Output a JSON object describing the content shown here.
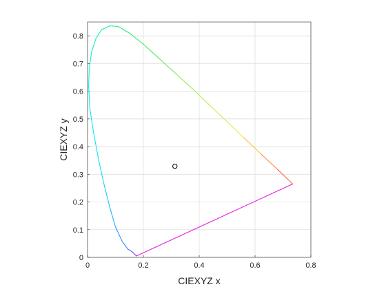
{
  "chart_data": {
    "type": "line",
    "title": "",
    "xlabel": "CIEXYZ x",
    "ylabel": "CIEXYZ y",
    "xlim": [
      0,
      0.8
    ],
    "ylim": [
      0,
      0.85
    ],
    "xticks": [
      0,
      0.2,
      0.4,
      0.6,
      0.8
    ],
    "xtick_labels": [
      "0",
      "0.2",
      "0.4",
      "0.6",
      "0.8"
    ],
    "yticks": [
      0,
      0.1,
      0.2,
      0.3,
      0.4,
      0.5,
      0.6,
      0.7,
      0.8
    ],
    "ytick_labels": [
      "0",
      "0.1",
      "0.2",
      "0.3",
      "0.4",
      "0.5",
      "0.6",
      "0.7",
      "0.8"
    ],
    "grid": true,
    "series": [
      {
        "kind": "spectral-locus",
        "points": [
          {
            "x": 0.175,
            "y": 0.005,
            "color": "#5a3cff"
          },
          {
            "x": 0.16,
            "y": 0.02,
            "color": "#4060ff"
          },
          {
            "x": 0.144,
            "y": 0.03,
            "color": "#3080ff"
          },
          {
            "x": 0.124,
            "y": 0.058,
            "color": "#2896ff"
          },
          {
            "x": 0.1,
            "y": 0.11,
            "color": "#20b0ff"
          },
          {
            "x": 0.08,
            "y": 0.18,
            "color": "#18c8ff"
          },
          {
            "x": 0.06,
            "y": 0.26,
            "color": "#10d8ff"
          },
          {
            "x": 0.04,
            "y": 0.35,
            "color": "#08e4f8"
          },
          {
            "x": 0.02,
            "y": 0.46,
            "color": "#00ecf0"
          },
          {
            "x": 0.008,
            "y": 0.54,
            "color": "#00f0e8"
          },
          {
            "x": 0.004,
            "y": 0.62,
            "color": "#00f4e0"
          },
          {
            "x": 0.006,
            "y": 0.68,
            "color": "#00f4d0"
          },
          {
            "x": 0.014,
            "y": 0.74,
            "color": "#00f4c0"
          },
          {
            "x": 0.03,
            "y": 0.79,
            "color": "#00f4b0"
          },
          {
            "x": 0.05,
            "y": 0.822,
            "color": "#08f0a0"
          },
          {
            "x": 0.08,
            "y": 0.836,
            "color": "#10ec90"
          },
          {
            "x": 0.11,
            "y": 0.834,
            "color": "#20ea80"
          },
          {
            "x": 0.15,
            "y": 0.81,
            "color": "#38e870"
          },
          {
            "x": 0.2,
            "y": 0.77,
            "color": "#50e868"
          },
          {
            "x": 0.26,
            "y": 0.715,
            "color": "#70ea60"
          },
          {
            "x": 0.32,
            "y": 0.66,
            "color": "#90ec58"
          },
          {
            "x": 0.38,
            "y": 0.605,
            "color": "#b0ee50"
          },
          {
            "x": 0.44,
            "y": 0.547,
            "color": "#d0f048"
          },
          {
            "x": 0.5,
            "y": 0.49,
            "color": "#f0e840"
          },
          {
            "x": 0.56,
            "y": 0.432,
            "color": "#ffc040"
          },
          {
            "x": 0.62,
            "y": 0.375,
            "color": "#ff9040"
          },
          {
            "x": 0.68,
            "y": 0.318,
            "color": "#ff6040"
          },
          {
            "x": 0.735,
            "y": 0.265,
            "color": "#ff3040"
          }
        ]
      },
      {
        "kind": "line-of-purples",
        "color": "#e81ce0",
        "points": [
          {
            "x": 0.735,
            "y": 0.265
          },
          {
            "x": 0.175,
            "y": 0.005
          }
        ]
      },
      {
        "kind": "scatter",
        "marker": "circle-open",
        "color": "#000000",
        "points": [
          {
            "x": 0.313,
            "y": 0.329
          }
        ]
      }
    ]
  }
}
